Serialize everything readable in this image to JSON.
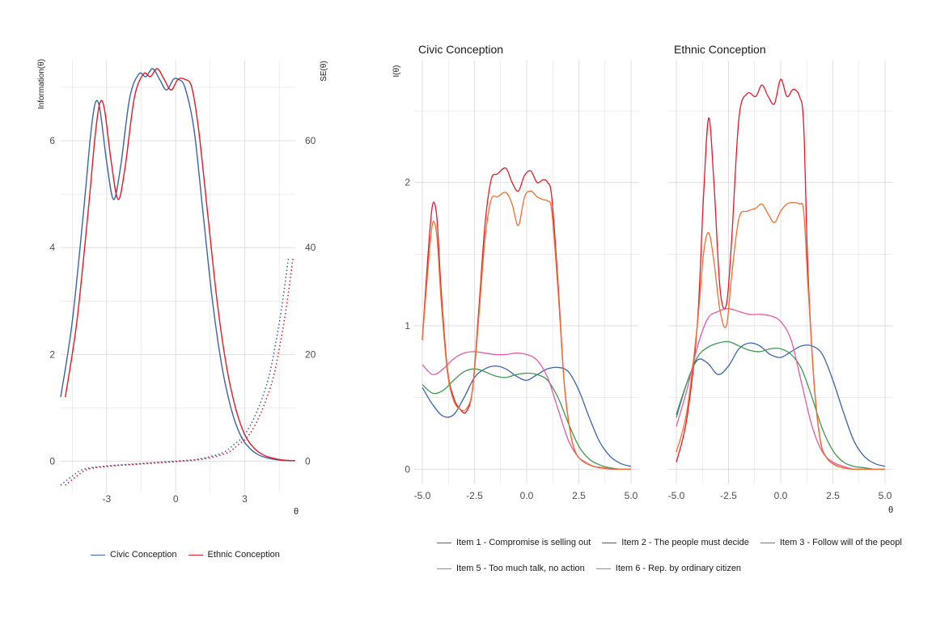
{
  "colors": {
    "civic": "#3a64ad",
    "ethnic": "#e31a2a",
    "item1": "#3a64ad",
    "item2": "#e31a2a",
    "item3": "#3d9a4e",
    "item5": "#e65aa7",
    "item6": "#f36f2d",
    "grid": "#dcdcdc"
  },
  "chart_data": [
    {
      "type": "line",
      "name": "test-information",
      "xlabel": "θ",
      "ylabel_left": "Information(θ)",
      "ylabel_right": "SE(θ)",
      "xlim": [
        -5.0,
        5.2
      ],
      "ylim_left": [
        -0.6,
        7.5
      ],
      "ylim_right": [
        -6,
        75
      ],
      "x_ticks": [
        -3,
        0,
        3
      ],
      "x_tick_labels": [
        "-3",
        "0",
        "3"
      ],
      "y_ticks_left": [
        0,
        2,
        4,
        6
      ],
      "y_tick_labels_left": [
        "0",
        "2",
        "4",
        "6"
      ],
      "y_ticks_right": [
        0,
        20,
        40,
        60
      ],
      "y_tick_labels_right": [
        "0",
        "20",
        "40",
        "60"
      ],
      "legend": [
        "Civic Conception",
        "Ethnic Conception"
      ],
      "series": [
        {
          "name": "Civic Conception",
          "style": "solid",
          "color_key": "civic",
          "x": [
            -5.0,
            -4.5,
            -4.0,
            -3.7,
            -3.5,
            -3.3,
            -3.0,
            -2.7,
            -2.4,
            -2.0,
            -1.6,
            -1.3,
            -1.0,
            -0.7,
            -0.4,
            -0.1,
            0.1,
            0.4,
            0.8,
            1.2,
            1.6,
            2.0,
            2.4,
            2.8,
            3.2,
            3.6,
            4.0,
            4.5,
            5.0
          ],
          "values": [
            1.2,
            2.6,
            4.7,
            6.1,
            6.7,
            6.6,
            5.6,
            4.9,
            5.5,
            6.8,
            7.25,
            7.2,
            7.35,
            7.15,
            6.95,
            7.15,
            7.15,
            7.0,
            6.2,
            4.6,
            3.0,
            1.8,
            1.0,
            0.5,
            0.25,
            0.12,
            0.06,
            0.02,
            0.01
          ]
        },
        {
          "name": "Ethnic Conception",
          "style": "solid",
          "color_key": "ethnic",
          "x": [
            -4.8,
            -4.3,
            -3.8,
            -3.5,
            -3.3,
            -3.1,
            -2.8,
            -2.5,
            -2.2,
            -1.8,
            -1.4,
            -1.1,
            -0.8,
            -0.5,
            -0.2,
            0.1,
            0.4,
            0.7,
            1.0,
            1.4,
            1.8,
            2.2,
            2.6,
            3.0,
            3.4,
            3.8,
            4.2,
            4.7,
            5.2
          ],
          "values": [
            1.2,
            2.6,
            4.7,
            6.1,
            6.7,
            6.6,
            5.6,
            4.9,
            5.5,
            6.8,
            7.25,
            7.2,
            7.35,
            7.15,
            6.95,
            7.15,
            7.15,
            7.0,
            6.2,
            4.6,
            3.0,
            1.8,
            1.0,
            0.5,
            0.25,
            0.12,
            0.06,
            0.02,
            0.01
          ]
        },
        {
          "name": "Civic Conception SE",
          "style": "dotted",
          "axis": "right",
          "color_key": "civic",
          "x": [
            -5.0,
            -4.5,
            -4.0,
            -3.0,
            -2.0,
            -1.0,
            0.0,
            1.0,
            2.0,
            2.5,
            3.0,
            3.5,
            4.0,
            4.3,
            4.6,
            4.9
          ],
          "values": [
            -4.5,
            -2.8,
            -1.5,
            -0.9,
            -0.6,
            -0.3,
            0.0,
            0.4,
            1.5,
            3.0,
            5.0,
            9.0,
            15.0,
            21.0,
            28.5,
            38.0
          ]
        },
        {
          "name": "Ethnic Conception SE",
          "style": "dotted",
          "axis": "right",
          "color_key": "ethnic",
          "x": [
            -4.8,
            -4.3,
            -3.8,
            -2.8,
            -1.8,
            -0.8,
            0.2,
            1.2,
            2.2,
            2.7,
            3.2,
            3.7,
            4.2,
            4.5,
            4.8,
            5.1
          ],
          "values": [
            -4.5,
            -2.8,
            -1.5,
            -0.9,
            -0.6,
            -0.3,
            0.0,
            0.4,
            1.5,
            3.0,
            5.0,
            9.0,
            15.0,
            21.0,
            28.5,
            38.0
          ]
        }
      ]
    },
    {
      "type": "line",
      "name": "item-information",
      "facets": [
        "Civic Conception",
        "Ethnic Conception"
      ],
      "xlabel": "θ",
      "ylabel": "I(θ)",
      "xlim": [
        -5.0,
        5.0
      ],
      "ylim": [
        -0.1,
        2.85
      ],
      "x_ticks": [
        -5.0,
        -2.5,
        0.0,
        2.5,
        5.0
      ],
      "x_tick_labels": [
        "-5.0",
        "-2.5",
        "0.0",
        "2.5",
        "5.0"
      ],
      "y_ticks": [
        0,
        1,
        2
      ],
      "y_tick_labels": [
        "0",
        "1",
        "2"
      ],
      "legend": [
        "Item 1 - Compromise is selling out",
        "Item 2 - The people must decide",
        "Item 3 - Follow will of the peopl",
        "Item 5 - Too much talk, no action",
        "Item 6 - Rep. by ordinary citizen"
      ],
      "panels": [
        {
          "title": "Civic Conception",
          "series": [
            {
              "name": "Item 1 - Compromise is selling out",
              "color_key": "item1",
              "x": [
                -5.0,
                -4.5,
                -4.0,
                -3.5,
                -3.0,
                -2.5,
                -2.0,
                -1.5,
                -1.0,
                -0.5,
                0.0,
                0.5,
                1.0,
                1.5,
                2.0,
                2.5,
                3.0,
                3.5,
                4.0,
                4.5,
                5.0
              ],
              "values": [
                0.57,
                0.45,
                0.37,
                0.38,
                0.5,
                0.64,
                0.7,
                0.72,
                0.7,
                0.65,
                0.62,
                0.66,
                0.7,
                0.71,
                0.68,
                0.55,
                0.36,
                0.19,
                0.09,
                0.04,
                0.02
              ]
            },
            {
              "name": "Item 2 - The people must decide",
              "color_key": "item2",
              "x": [
                -5.0,
                -4.7,
                -4.5,
                -4.3,
                -4.1,
                -3.8,
                -3.5,
                -3.2,
                -2.9,
                -2.6,
                -2.3,
                -2.0,
                -1.7,
                -1.4,
                -1.0,
                -0.7,
                -0.4,
                -0.1,
                0.2,
                0.5,
                0.8,
                1.0,
                1.2,
                1.5,
                1.8,
                2.1,
                2.4,
                2.8,
                3.2,
                3.7,
                4.2,
                5.0
              ],
              "values": [
                0.9,
                1.55,
                1.85,
                1.75,
                1.25,
                0.7,
                0.5,
                0.42,
                0.4,
                0.55,
                1.1,
                1.7,
                2.02,
                2.06,
                2.1,
                2.0,
                1.94,
                2.05,
                2.08,
                2.0,
                2.02,
                2.0,
                1.9,
                1.3,
                0.6,
                0.25,
                0.1,
                0.05,
                0.02,
                0.01,
                0.0,
                0.0
              ]
            },
            {
              "name": "Item 3 - Follow will of the peopl",
              "color_key": "item3",
              "x": [
                -5.0,
                -4.5,
                -4.0,
                -3.5,
                -3.0,
                -2.5,
                -2.0,
                -1.5,
                -1.0,
                -0.5,
                0.0,
                0.5,
                1.0,
                1.5,
                2.0,
                2.5,
                3.0,
                3.5,
                4.0,
                4.5,
                5.0
              ],
              "values": [
                0.59,
                0.53,
                0.55,
                0.62,
                0.68,
                0.7,
                0.68,
                0.65,
                0.64,
                0.66,
                0.67,
                0.66,
                0.62,
                0.5,
                0.32,
                0.16,
                0.07,
                0.03,
                0.01,
                0.0,
                0.0
              ]
            },
            {
              "name": "Item 5 - Too much talk, no action",
              "color_key": "item5",
              "x": [
                -5.0,
                -4.5,
                -4.0,
                -3.5,
                -3.0,
                -2.5,
                -2.0,
                -1.5,
                -1.0,
                -0.5,
                0.0,
                0.5,
                1.0,
                1.5,
                2.0,
                2.5,
                3.0,
                3.5,
                4.0,
                4.5,
                5.0
              ],
              "values": [
                0.73,
                0.66,
                0.7,
                0.77,
                0.81,
                0.82,
                0.81,
                0.8,
                0.8,
                0.81,
                0.8,
                0.76,
                0.64,
                0.42,
                0.2,
                0.08,
                0.03,
                0.01,
                0.0,
                0.0,
                0.0
              ]
            },
            {
              "name": "Item 6 - Rep. by ordinary citizen",
              "color_key": "item6",
              "x": [
                -5.0,
                -4.7,
                -4.5,
                -4.3,
                -4.1,
                -3.8,
                -3.5,
                -3.2,
                -2.9,
                -2.6,
                -2.3,
                -2.0,
                -1.7,
                -1.4,
                -1.0,
                -0.7,
                -0.4,
                -0.1,
                0.2,
                0.5,
                0.8,
                1.0,
                1.2,
                1.5,
                1.8,
                2.1,
                2.4,
                2.8,
                3.2,
                3.7,
                4.2,
                5.0
              ],
              "values": [
                0.9,
                1.45,
                1.72,
                1.62,
                1.18,
                0.68,
                0.48,
                0.42,
                0.42,
                0.55,
                1.05,
                1.6,
                1.88,
                1.9,
                1.93,
                1.85,
                1.7,
                1.9,
                1.94,
                1.9,
                1.88,
                1.87,
                1.8,
                1.25,
                0.6,
                0.25,
                0.1,
                0.05,
                0.02,
                0.01,
                0.0,
                0.0
              ]
            }
          ]
        },
        {
          "title": "Ethnic Conception",
          "series": [
            {
              "name": "Item 1 - Compromise is selling out",
              "color_key": "item1",
              "x": [
                -5.0,
                -4.5,
                -4.0,
                -3.5,
                -3.0,
                -2.5,
                -2.0,
                -1.5,
                -1.0,
                -0.5,
                0.0,
                0.5,
                1.0,
                1.5,
                2.0,
                2.5,
                3.0,
                3.5,
                4.0,
                4.5,
                5.0
              ],
              "values": [
                0.38,
                0.6,
                0.76,
                0.74,
                0.66,
                0.72,
                0.84,
                0.88,
                0.86,
                0.8,
                0.78,
                0.82,
                0.86,
                0.86,
                0.8,
                0.62,
                0.4,
                0.2,
                0.09,
                0.04,
                0.02
              ]
            },
            {
              "name": "Item 2 - The people must decide",
              "color_key": "item2",
              "x": [
                -5.0,
                -4.5,
                -4.0,
                -3.7,
                -3.45,
                -3.2,
                -2.9,
                -2.6,
                -2.35,
                -2.0,
                -1.6,
                -1.2,
                -0.9,
                -0.6,
                -0.3,
                0.0,
                0.3,
                0.6,
                0.9,
                1.1,
                1.3,
                1.6,
                1.9,
                2.2,
                2.6,
                3.0,
                3.5,
                4.0,
                5.0
              ],
              "values": [
                0.05,
                0.35,
                1.0,
                1.9,
                2.45,
                2.0,
                1.25,
                1.15,
                1.6,
                2.45,
                2.62,
                2.6,
                2.68,
                2.6,
                2.55,
                2.72,
                2.6,
                2.65,
                2.6,
                2.4,
                1.4,
                0.6,
                0.2,
                0.08,
                0.03,
                0.01,
                0.0,
                0.0,
                0.0
              ]
            },
            {
              "name": "Item 3 - Follow will of the peopl",
              "color_key": "item3",
              "x": [
                -5.0,
                -4.5,
                -4.0,
                -3.5,
                -3.0,
                -2.5,
                -2.0,
                -1.5,
                -1.0,
                -0.5,
                0.0,
                0.5,
                1.0,
                1.5,
                2.0,
                2.5,
                3.0,
                3.5,
                4.0,
                4.5,
                5.0
              ],
              "values": [
                0.36,
                0.6,
                0.78,
                0.85,
                0.88,
                0.89,
                0.86,
                0.83,
                0.82,
                0.84,
                0.84,
                0.8,
                0.7,
                0.5,
                0.28,
                0.13,
                0.05,
                0.02,
                0.01,
                0.0,
                0.0
              ]
            },
            {
              "name": "Item 5 - Too much talk, no action",
              "color_key": "item5",
              "x": [
                -5.0,
                -4.5,
                -4.0,
                -3.5,
                -3.0,
                -2.5,
                -2.0,
                -1.5,
                -1.0,
                -0.5,
                0.0,
                0.5,
                1.0,
                1.5,
                2.0,
                2.5,
                3.0,
                3.5,
                4.0,
                4.5,
                5.0
              ],
              "values": [
                0.3,
                0.55,
                0.85,
                1.05,
                1.1,
                1.12,
                1.1,
                1.08,
                1.08,
                1.07,
                1.03,
                0.9,
                0.6,
                0.3,
                0.12,
                0.05,
                0.02,
                0.0,
                0.0,
                0.0,
                0.0
              ]
            },
            {
              "name": "Item 6 - Rep. by ordinary citizen",
              "color_key": "item6",
              "x": [
                -5.0,
                -4.5,
                -4.0,
                -3.7,
                -3.45,
                -3.2,
                -2.9,
                -2.6,
                -2.35,
                -2.0,
                -1.6,
                -1.2,
                -0.9,
                -0.6,
                -0.3,
                0.0,
                0.3,
                0.6,
                0.9,
                1.1,
                1.3,
                1.6,
                1.9,
                2.2,
                2.6,
                3.0,
                3.5,
                4.0,
                5.0
              ],
              "values": [
                0.12,
                0.4,
                1.0,
                1.5,
                1.65,
                1.45,
                1.1,
                1.0,
                1.35,
                1.75,
                1.8,
                1.82,
                1.85,
                1.78,
                1.72,
                1.8,
                1.85,
                1.86,
                1.85,
                1.8,
                1.3,
                0.6,
                0.2,
                0.08,
                0.03,
                0.01,
                0.0,
                0.0,
                0.0
              ]
            }
          ]
        }
      ]
    }
  ]
}
